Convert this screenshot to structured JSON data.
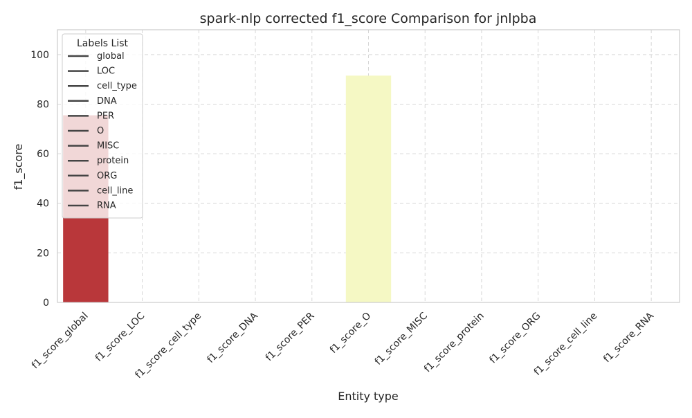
{
  "chart_data": {
    "type": "bar",
    "title": "spark-nlp corrected f1_score Comparison for jnlpba",
    "xlabel": "Entity type",
    "ylabel": "f1_score",
    "categories": [
      "f1_score_global",
      "f1_score_LOC",
      "f1_score_cell_type",
      "f1_score_DNA",
      "f1_score_PER",
      "f1_score_O",
      "f1_score_MISC",
      "f1_score_protein",
      "f1_score_ORG",
      "f1_score_cell_line",
      "f1_score_RNA"
    ],
    "values": [
      75.5,
      0,
      0,
      0,
      0,
      91.5,
      0,
      0,
      0,
      0,
      0
    ],
    "bar_colors": [
      "#b9373a",
      "#d9d9d9",
      "#d9d9d9",
      "#d9d9d9",
      "#d9d9d9",
      "#f5f8c4",
      "#d9d9d9",
      "#d9d9d9",
      "#d9d9d9",
      "#d9d9d9",
      "#d9d9d9"
    ],
    "ylim": [
      0,
      110
    ],
    "yticks": [
      0,
      20,
      40,
      60,
      80,
      100
    ],
    "grid": true,
    "legend": {
      "title": "Labels List",
      "placement": "top-left",
      "entries": [
        "global",
        "LOC",
        "cell_type",
        "DNA",
        "PER",
        "O",
        "MISC",
        "protein",
        "ORG",
        "cell_line",
        "RNA"
      ]
    }
  }
}
